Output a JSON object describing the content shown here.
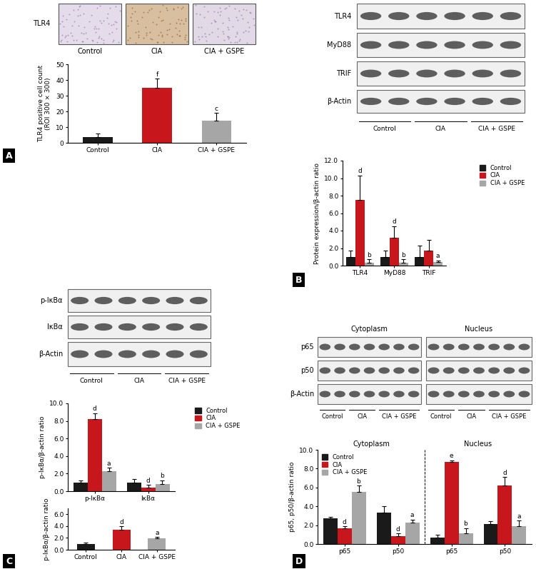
{
  "chart_data": [
    {
      "type": "bar",
      "categories": [
        "Control",
        "CIA",
        "CIA + GSPE"
      ],
      "values": [
        3.5,
        35,
        14
      ],
      "errors": [
        2.5,
        6,
        5
      ],
      "annotations": [
        null,
        "f",
        "c"
      ],
      "colors": [
        "#1a1a1a",
        "#c8161d",
        "#a6a6a6"
      ],
      "y_label": "TLR4 positive cell count\n(ROI 300 × 300)",
      "ylim": [
        0,
        50
      ],
      "yticks": [
        0,
        10,
        20,
        30,
        40,
        50
      ]
    },
    {
      "type": "bar",
      "categories": [
        "TLR4",
        "MyD88",
        "TRIF"
      ],
      "series": [
        {
          "name": "Control",
          "color": "#1a1a1a",
          "values": [
            1.0,
            1.0,
            1.0
          ],
          "errors": [
            0.7,
            0.7,
            1.3
          ],
          "annotations": [
            null,
            null,
            null
          ]
        },
        {
          "name": "CIA",
          "color": "#c8161d",
          "values": [
            7.5,
            3.2,
            1.7
          ],
          "errors": [
            2.8,
            1.3,
            1.2
          ],
          "annotations": [
            "d",
            "d",
            null
          ]
        },
        {
          "name": "CIA + GSPE",
          "color": "#a6a6a6",
          "values": [
            0.3,
            0.3,
            0.4
          ],
          "errors": [
            0.4,
            0.4,
            0.2
          ],
          "annotations": [
            "b",
            "b",
            "a"
          ]
        }
      ],
      "y_label": "Protein expression/β-actin ratio",
      "ylim": [
        0,
        12
      ],
      "yticks": [
        {
          "value": 0,
          "label": "0.0"
        },
        {
          "value": 2,
          "label": "2.0"
        },
        {
          "value": 4,
          "label": "4.0"
        },
        {
          "value": 6,
          "label": "6.0"
        },
        {
          "value": 8,
          "label": "8.0"
        },
        {
          "value": 10,
          "label": "10.0"
        },
        {
          "value": 12,
          "label": "12.0"
        }
      ],
      "legend": "upper right"
    },
    {
      "type": "bar",
      "categories": [
        "p-IκBα",
        "IκBα"
      ],
      "series": [
        {
          "name": "Control",
          "color": "#1a1a1a",
          "values": [
            1.0,
            1.0
          ],
          "errors": [
            0.25,
            0.4
          ],
          "annotations": [
            null,
            null
          ]
        },
        {
          "name": "CIA",
          "color": "#c8161d",
          "values": [
            8.2,
            0.4
          ],
          "errors": [
            0.7,
            0.3
          ],
          "annotations": [
            "d",
            "d"
          ]
        },
        {
          "name": "CIA + GSPE",
          "color": "#a6a6a6",
          "values": [
            2.3,
            0.85
          ],
          "errors": [
            0.35,
            0.4
          ],
          "annotations": [
            "a",
            "b"
          ]
        }
      ],
      "y_label": "p-IκBα/β-actin ratio",
      "ylim": [
        0,
        10
      ],
      "yticks": [
        {
          "value": 0,
          "label": "0.0"
        },
        {
          "value": 2,
          "label": "2.0"
        },
        {
          "value": 4,
          "label": "4.0"
        },
        {
          "value": 6,
          "label": "6.0"
        },
        {
          "value": 8,
          "label": "8.0"
        },
        {
          "value": 10,
          "label": "10.0"
        }
      ],
      "legend": "upper right"
    },
    {
      "type": "bar",
      "categories": [
        "Control",
        "CIA",
        "CIA + GSPE"
      ],
      "values": [
        1.0,
        3.4,
        1.9
      ],
      "errors": [
        0.2,
        0.6,
        0.3
      ],
      "annotations": [
        null,
        "d",
        "a"
      ],
      "colors": [
        "#1a1a1a",
        "#c8161d",
        "#a6a6a6"
      ],
      "y_label": "p-IκBα/β-actin ratio",
      "ylim": [
        0,
        7
      ],
      "yticks": [
        {
          "value": 0,
          "label": "0.0"
        },
        {
          "value": 2,
          "label": "2.0"
        },
        {
          "value": 4,
          "label": "4.0"
        },
        {
          "value": 6,
          "label": "6.0"
        }
      ]
    },
    {
      "type": "bar",
      "categories": [
        "p65",
        "p50",
        "p65",
        "p50"
      ],
      "groups": [
        "Cytoplasm",
        "Nucleus"
      ],
      "series": [
        {
          "name": "Control",
          "color": "#1a1a1a",
          "values": [
            2.7,
            3.3,
            0.7,
            2.1
          ],
          "errors": [
            0.2,
            0.7,
            0.3,
            0.3
          ],
          "annotations": [
            null,
            null,
            null,
            null
          ]
        },
        {
          "name": "CIA",
          "color": "#c8161d",
          "values": [
            1.7,
            0.8,
            8.7,
            6.2
          ],
          "errors": [
            0.2,
            0.3,
            0.2,
            0.9
          ],
          "annotations": [
            "d",
            "d",
            "e",
            "d"
          ]
        },
        {
          "name": "CIA + GSPE",
          "color": "#a6a6a6",
          "values": [
            5.5,
            2.3,
            1.1,
            1.9
          ],
          "errors": [
            0.7,
            0.3,
            0.6,
            0.6
          ],
          "annotations": [
            "b",
            "a",
            "b",
            "a"
          ]
        }
      ],
      "y_label": "p65, p50/β-actin ratio",
      "ylim": [
        0,
        10
      ],
      "yticks": [
        {
          "value": 0,
          "label": "0.0"
        },
        {
          "value": 2,
          "label": "2.0"
        },
        {
          "value": 4,
          "label": "4.0"
        },
        {
          "value": 6,
          "label": "6.0"
        },
        {
          "value": 8,
          "label": "8.0"
        },
        {
          "value": 10,
          "label": "10.0"
        }
      ],
      "legend": "upper left"
    }
  ],
  "panel_letters": [
    "A",
    "B",
    "C",
    "D"
  ],
  "ihc": {
    "row_label": "TLR4",
    "labels": [
      "Control",
      "CIA",
      "CIA + GSPE"
    ]
  },
  "blots": [
    {
      "rows": [
        "TLR4",
        "MyD88",
        "TRIF",
        "β-Actin"
      ],
      "groups": [
        "Control",
        "CIA",
        "CIA + GSPE"
      ]
    },
    {
      "rows": [
        "p-IκBα",
        "IκBα",
        "β-Actin"
      ],
      "groups": [
        "Control",
        "CIA",
        "CIA + GSPE"
      ]
    },
    {
      "sections": [
        "Cytoplasm",
        "Nucleus"
      ],
      "rows": [
        "p65",
        "p50",
        "β-Actin"
      ],
      "groups": [
        "Control",
        "CIA",
        "CIA + GSPE"
      ]
    }
  ]
}
